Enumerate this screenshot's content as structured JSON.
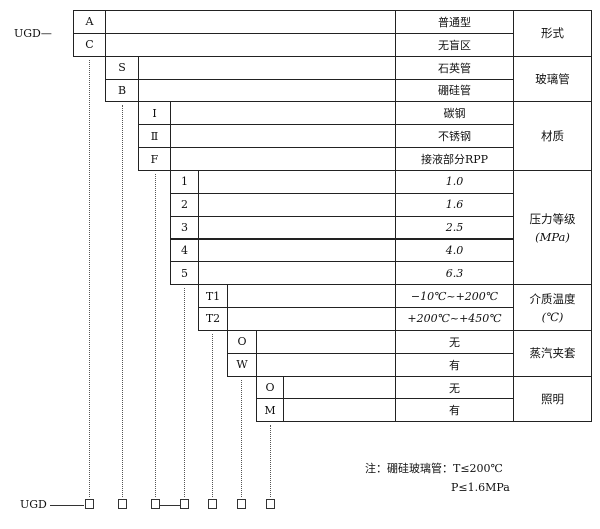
{
  "prefix_top": "UGD—",
  "prefix_bottom": "UGD",
  "rows": [
    {
      "code": "A",
      "value": "普通型",
      "italic": false
    },
    {
      "code": "C",
      "value": "无盲区",
      "italic": false
    },
    {
      "code": "S",
      "value": "石英管",
      "italic": false
    },
    {
      "code": "B",
      "value": "硼硅管",
      "italic": false
    },
    {
      "code": "Ⅰ",
      "value": "碳钢",
      "italic": false
    },
    {
      "code": "Ⅱ",
      "value": "不锈钢",
      "italic": false
    },
    {
      "code": "F",
      "value": "接液部分RPP",
      "italic": false
    },
    {
      "code": "1",
      "value": "1.0",
      "italic": true
    },
    {
      "code": "2",
      "value": "1.6",
      "italic": true
    },
    {
      "code": "3",
      "value": "2.5",
      "italic": true
    },
    {
      "code": "4",
      "value": "4.0",
      "italic": true
    },
    {
      "code": "5",
      "value": "6.3",
      "italic": true
    },
    {
      "code": "T1",
      "value": "−10℃~+200℃",
      "italic": true
    },
    {
      "code": "T2",
      "value": "+200℃~+450℃",
      "italic": true
    },
    {
      "code": "O",
      "value": "无",
      "italic": false
    },
    {
      "code": "W",
      "value": "有",
      "italic": false
    },
    {
      "code": "O",
      "value": "无",
      "italic": false
    },
    {
      "code": "M",
      "value": "有",
      "italic": false
    }
  ],
  "groups": [
    {
      "label": "形式",
      "sub": "",
      "start": 0,
      "end": 1
    },
    {
      "label": "玻璃管",
      "sub": "",
      "start": 2,
      "end": 3
    },
    {
      "label": "材质",
      "sub": "",
      "start": 4,
      "end": 6
    },
    {
      "label": "压力等级",
      "sub": "(MPa)",
      "start": 7,
      "end": 11
    },
    {
      "label": "介质温度",
      "sub": "(℃)",
      "start": 12,
      "end": 13
    },
    {
      "label": "蒸汽夹套",
      "sub": "",
      "start": 14,
      "end": 15
    },
    {
      "label": "照明",
      "sub": "",
      "start": 16,
      "end": 17
    }
  ],
  "note": {
    "line1": "注：硼硅玻璃管：T≤200℃",
    "line2": "P≤1.6MPa"
  }
}
